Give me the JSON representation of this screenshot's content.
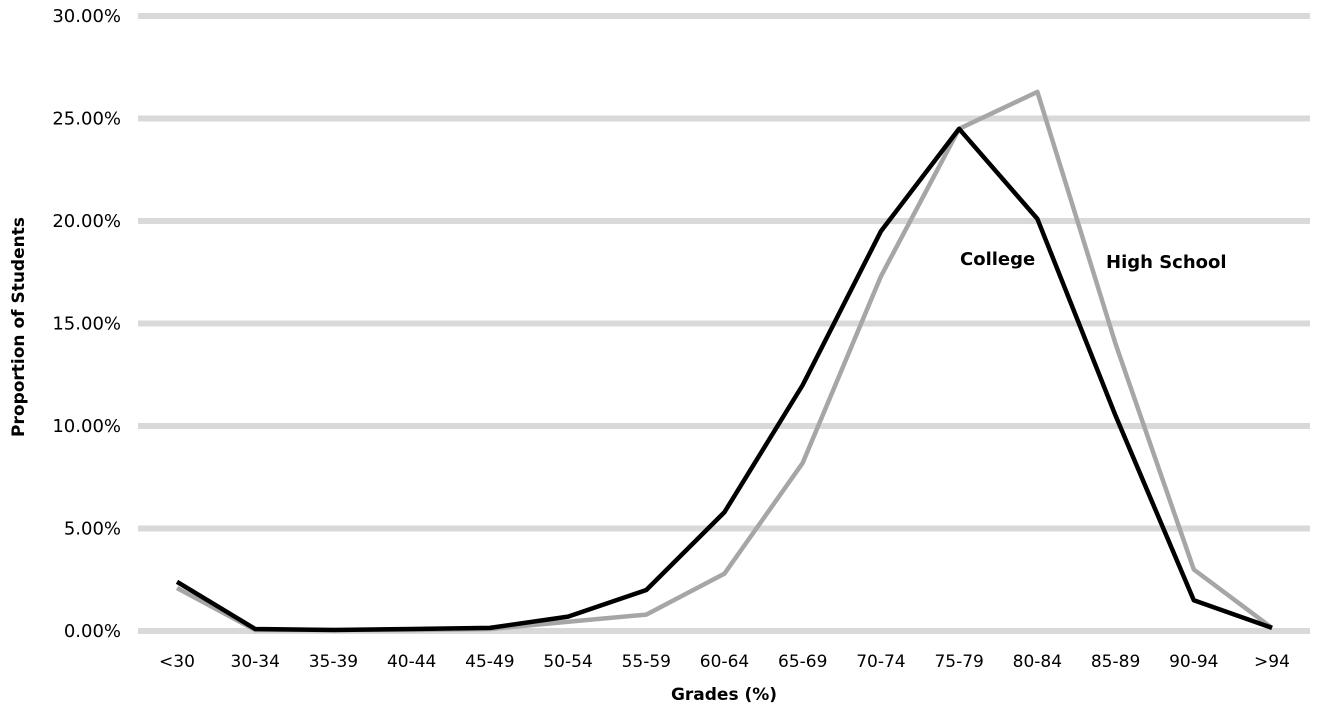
{
  "chart_data": {
    "type": "line",
    "title": "",
    "xlabel": "Grades (%)",
    "ylabel": "Proportion of Students",
    "categories": [
      "<30",
      "30-34",
      "35-39",
      "40-44",
      "45-49",
      "50-54",
      "55-59",
      "60-64",
      "65-69",
      "70-74",
      "75-79",
      "80-84",
      "85-89",
      "90-94",
      ">94"
    ],
    "ylim": [
      0,
      30
    ],
    "yticks": [
      "0.00%",
      "5.00%",
      "10.00%",
      "15.00%",
      "20.00%",
      "25.00%",
      "30.00%"
    ],
    "grid": true,
    "legend": "none (series labeled directly on plot)",
    "series": [
      {
        "name": "College",
        "color": "#000000",
        "values": [
          2.4,
          0.1,
          0.05,
          0.1,
          0.15,
          0.7,
          2.0,
          5.8,
          12.0,
          19.5,
          24.5,
          20.1,
          10.5,
          1.5,
          0.15
        ]
      },
      {
        "name": "High School",
        "color": "#a6a6a6",
        "values": [
          2.1,
          0.05,
          0.05,
          0.05,
          0.1,
          0.45,
          0.8,
          2.8,
          8.2,
          17.3,
          24.5,
          26.3,
          14.0,
          3.0,
          0.15
        ]
      }
    ]
  }
}
